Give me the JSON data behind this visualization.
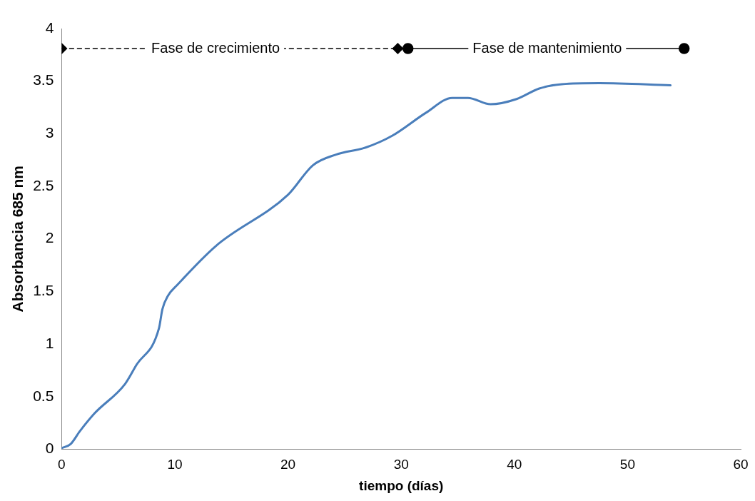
{
  "chart_data": {
    "type": "line",
    "xlabel": "tiempo (días)",
    "ylabel": "Absorbancia 685 nm",
    "xlim": [
      0,
      60
    ],
    "xticks": [
      0,
      10,
      20,
      30,
      40,
      50,
      60
    ],
    "ylim": [
      0,
      4
    ],
    "yticks": [
      0,
      0.5,
      1,
      1.5,
      2,
      2.5,
      3,
      3.5,
      4
    ],
    "grid": false,
    "legend": false,
    "series": [
      {
        "color": "#4a7ebb",
        "marker": "none",
        "line_style": "solid",
        "x": [
          0,
          0.8,
          1.6,
          2.9,
          5.6,
          6.6,
          8.6,
          8.9,
          9.4,
          10.2,
          13.6,
          20,
          22.2,
          24.2,
          26.9,
          29.2,
          32.2,
          34.5,
          35.9,
          37.9,
          40.2,
          42.2,
          44.2,
          47.5,
          53.8
        ],
        "values": [
          0.01,
          0.05,
          0.17,
          0.34,
          0.62,
          0.8,
          1.15,
          1.33,
          1.46,
          1.56,
          1.93,
          2.42,
          2.7,
          2.8,
          2.87,
          2.98,
          3.2,
          3.34,
          3.34,
          3.28,
          3.33,
          3.43,
          3.47,
          3.48,
          3.46
        ]
      },
      {
        "color": "#000000",
        "marker": "diamond",
        "line_style": "dashed",
        "x": [
          0,
          29.7
        ],
        "values": [
          3.81,
          3.81
        ]
      },
      {
        "color": "#000000",
        "marker": "circle",
        "line_style": "solid",
        "x": [
          30.6,
          55
        ],
        "values": [
          3.81,
          3.81
        ]
      }
    ],
    "annotations": [
      {
        "text": "Fase de crecimiento",
        "x": 13.6,
        "y": 3.81
      },
      {
        "text": "Fase de mantenimiento",
        "x": 42.9,
        "y": 3.81
      }
    ]
  }
}
